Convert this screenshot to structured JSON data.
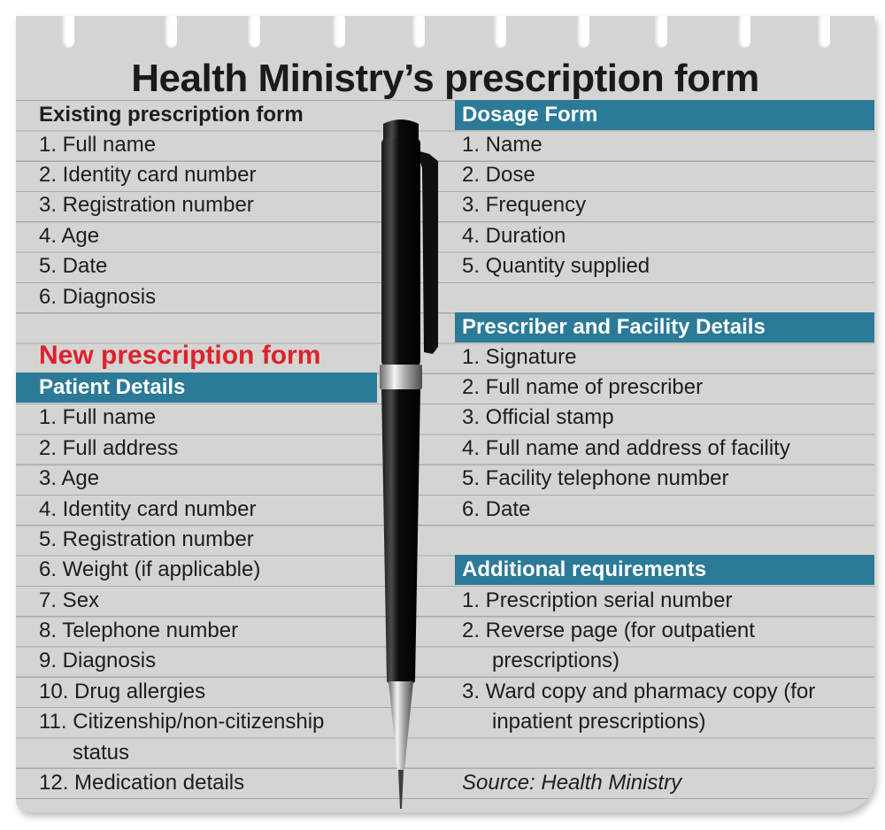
{
  "title": "Health Ministry’s prescription form",
  "existing": {
    "heading": "Existing prescription form",
    "items": [
      "1. Full name",
      "2. Identity card number",
      "3. Registration number",
      "4. Age",
      "5. Date",
      "6. Diagnosis"
    ]
  },
  "new_form": {
    "heading": "New prescription form",
    "patient": {
      "heading": "Patient Details",
      "items": [
        "1. Full name",
        "2. Full address",
        "3. Age",
        "4. Identity card number",
        "5. Registration number",
        "6. Weight (if applicable)",
        "7. Sex",
        "8. Telephone number",
        "9. Diagnosis",
        "10. Drug allergies",
        "11. Citizenship/non-citizenship",
        "status",
        "12. Medication details"
      ]
    },
    "dosage": {
      "heading": "Dosage Form",
      "items": [
        "1. Name",
        "2. Dose",
        "3. Frequency",
        "4. Duration",
        "5. Quantity supplied"
      ]
    },
    "prescriber": {
      "heading": "Prescriber and Facility Details",
      "items": [
        "1. Signature",
        "2. Full name of prescriber",
        "3. Official stamp",
        "4. Full name and address of facility",
        "5. Facility telephone number",
        "6. Date"
      ]
    },
    "additional": {
      "heading": "Additional requirements",
      "items": [
        "1. Prescription serial number",
        "2. Reverse page (for outpatient",
        "prescriptions)",
        "3. Ward copy and pharmacy copy (for",
        "inpatient prescriptions)"
      ]
    }
  },
  "source": "Source: Health Ministry",
  "colors": {
    "band": "#2b7a98",
    "red_heading": "#e0202b",
    "paper": "#d4d5d3"
  },
  "icons": {
    "pen": "pen-icon"
  }
}
